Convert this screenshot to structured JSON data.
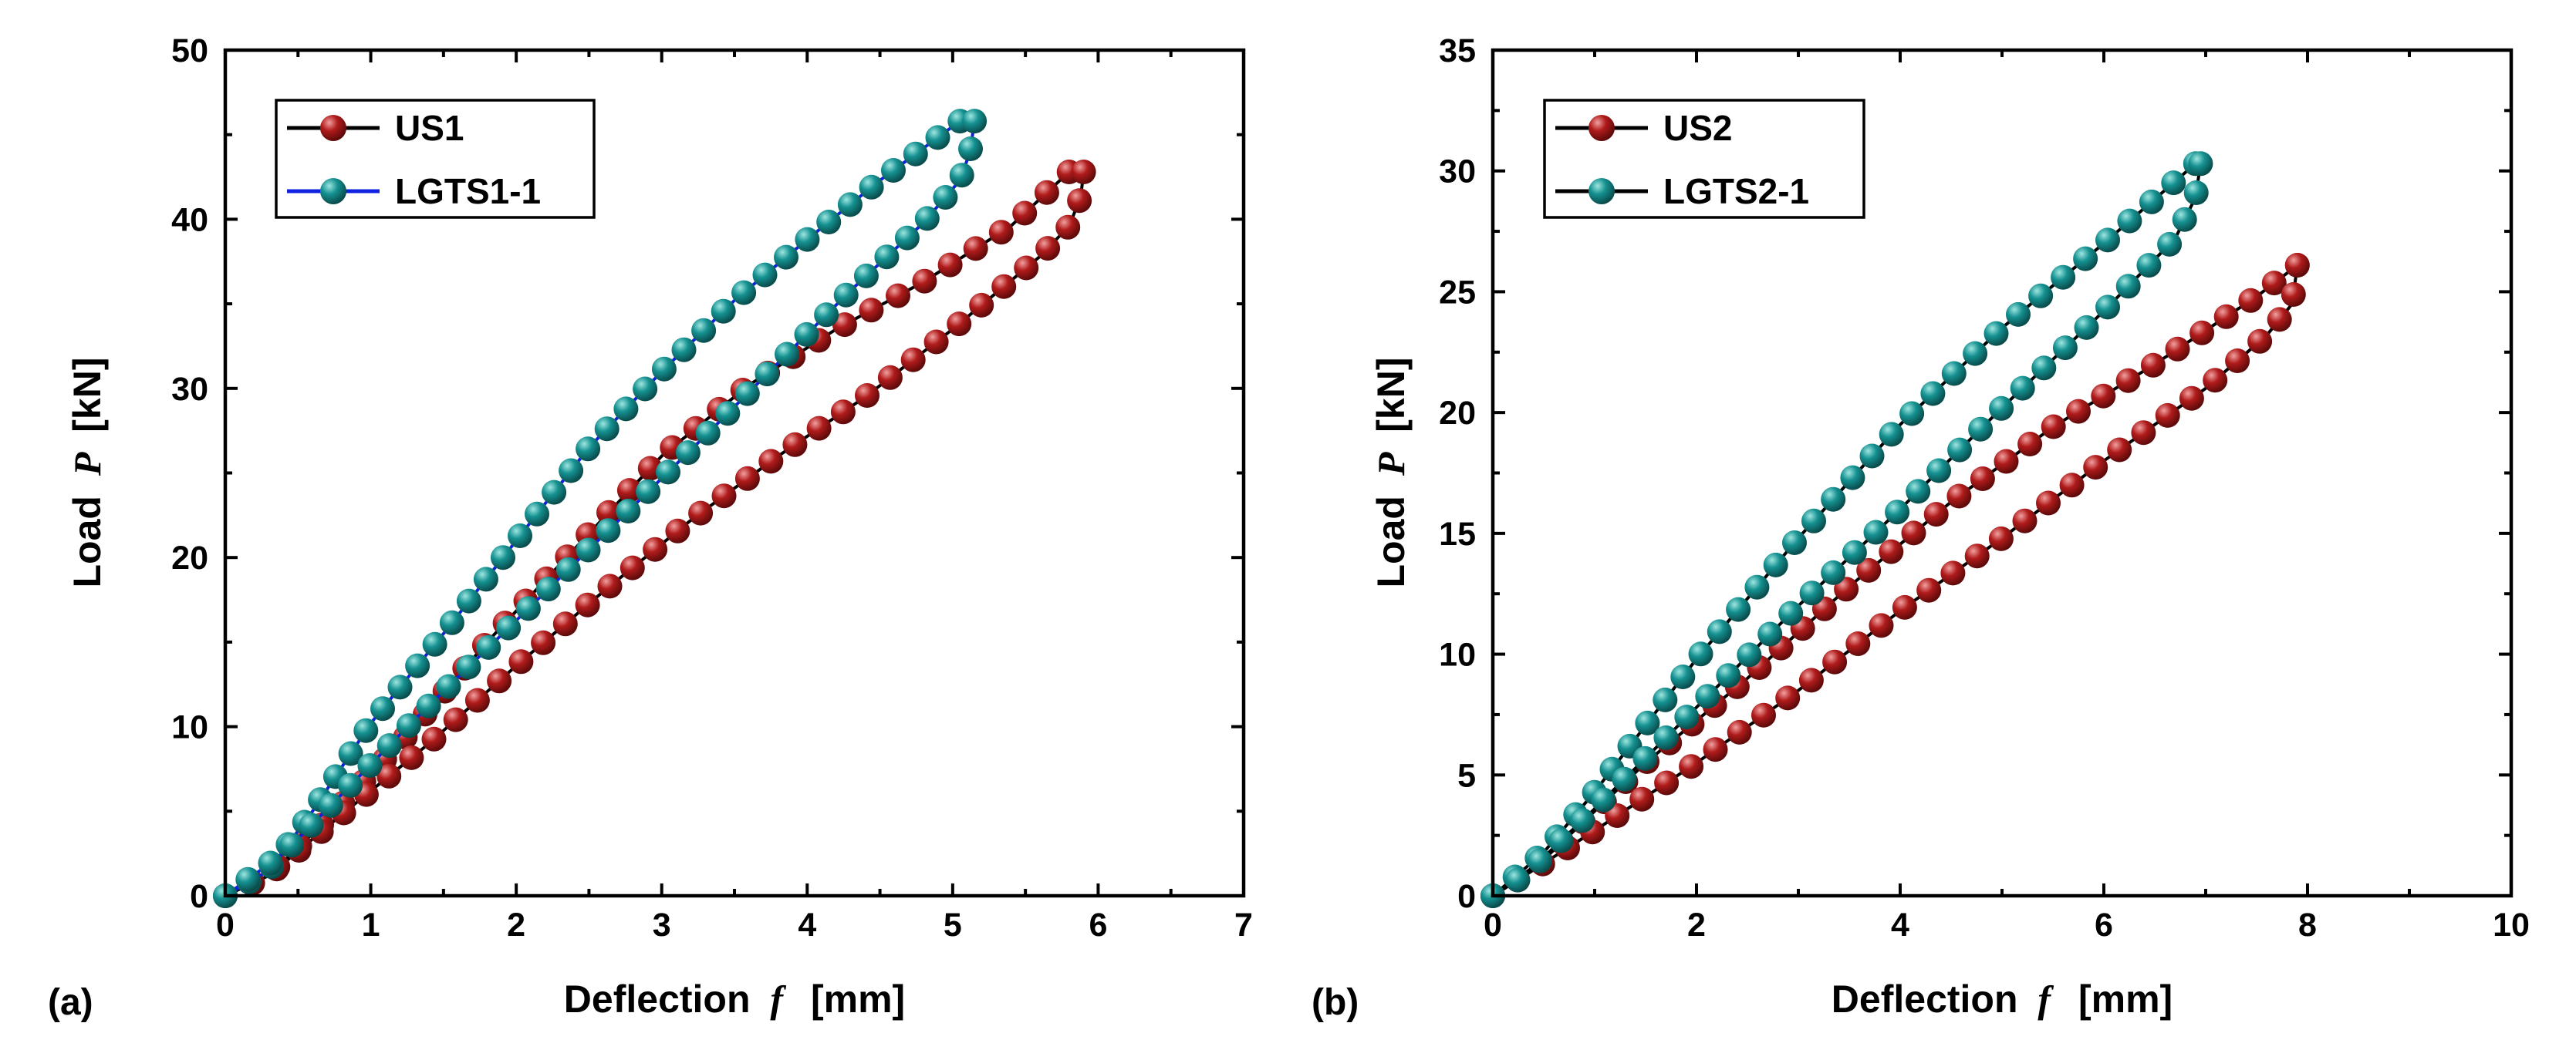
{
  "colors": {
    "us_marker": "#b01b1b",
    "us_marker_light": "#f2a0a0",
    "lgts_marker": "#159191",
    "lgts_marker_light": "#9ee6e0",
    "line_black": "#000000",
    "line_blue": "#1020e0"
  },
  "chart_data": [
    {
      "type": "line",
      "panel_label": "(a)",
      "xlabel_text": "Deflection",
      "xlabel_var": "f",
      "xlabel_unit": "[mm]",
      "ylabel_text": "Load",
      "ylabel_var": "P",
      "ylabel_unit": "[kN]",
      "xlim": [
        0,
        7
      ],
      "ylim": [
        0,
        50
      ],
      "xticks": [
        0,
        1,
        2,
        3,
        4,
        5,
        6,
        7
      ],
      "yticks": [
        0,
        10,
        20,
        30,
        40,
        50
      ],
      "legend_position": "top-left",
      "series": [
        {
          "name": "US1",
          "line_color": "#000000",
          "marker": "us",
          "loading": [
            [
              0,
              0
            ],
            [
              0.3,
              1.2
            ],
            [
              0.7,
              4.5
            ],
            [
              1.2,
              9
            ],
            [
              1.8,
              15
            ],
            [
              2.4,
              20.5
            ],
            [
              3,
              26
            ],
            [
              3.6,
              30.2
            ],
            [
              4.2,
              33.5
            ],
            [
              4.8,
              36.3
            ],
            [
              5.4,
              39.6
            ],
            [
              5.8,
              42.8
            ]
          ],
          "unloading": [
            [
              5.9,
              42.8
            ],
            [
              5.88,
              41.3
            ],
            [
              5.8,
              39.6
            ],
            [
              5.6,
              37.8
            ],
            [
              5,
              33.5
            ],
            [
              4.4,
              29.5
            ],
            [
              3.8,
              26
            ],
            [
              3.2,
              22.2
            ],
            [
              2.6,
              18
            ],
            [
              2,
              13.6
            ],
            [
              1.4,
              9
            ],
            [
              0.8,
              4.8
            ],
            [
              0.3,
              1.2
            ],
            [
              0,
              0
            ]
          ],
          "loading_points": 38,
          "unloading_points": 40
        },
        {
          "name": "LGTS1-1",
          "line_color": "#1020e0",
          "marker": "lgts",
          "loading": [
            [
              0,
              0
            ],
            [
              0.3,
              1.5
            ],
            [
              0.6,
              5
            ],
            [
              1,
              10.2
            ],
            [
              1.5,
              15.5
            ],
            [
              2,
              21
            ],
            [
              2.5,
              26.5
            ],
            [
              3,
              31
            ],
            [
              3.5,
              35.2
            ],
            [
              4,
              38.8
            ],
            [
              4.5,
              42.3
            ],
            [
              5.05,
              45.8
            ]
          ],
          "unloading": [
            [
              5.15,
              45.8
            ],
            [
              5.12,
              44
            ],
            [
              5.05,
              42.3
            ],
            [
              4.8,
              39.8
            ],
            [
              4.3,
              35.8
            ],
            [
              3.8,
              31.5
            ],
            [
              3.3,
              27.2
            ],
            [
              2.8,
              23
            ],
            [
              2.3,
              18.8
            ],
            [
              1.8,
              14.6
            ],
            [
              1.3,
              10.4
            ],
            [
              0.8,
              6
            ],
            [
              0.4,
              2.5
            ],
            [
              0,
              0
            ]
          ],
          "loading_points": 40,
          "unloading_points": 40
        }
      ]
    },
    {
      "type": "line",
      "panel_label": "(b)",
      "xlabel_text": "Deflection",
      "xlabel_var": "f",
      "xlabel_unit": "[mm]",
      "ylabel_text": "Load",
      "ylabel_var": "P",
      "ylabel_unit": "[kN]",
      "xlim": [
        0,
        10
      ],
      "ylim": [
        0,
        35
      ],
      "xticks": [
        0,
        2,
        4,
        6,
        8,
        10
      ],
      "yticks": [
        0,
        5,
        10,
        15,
        20,
        25,
        30,
        35
      ],
      "legend_position": "top-left",
      "series": [
        {
          "name": "US2",
          "line_color": "#000000",
          "marker": "us",
          "loading": [
            [
              0,
              0
            ],
            [
              0.5,
              1.5
            ],
            [
              1.5,
              5.5
            ],
            [
              2.5,
              9
            ],
            [
              3.5,
              12.8
            ],
            [
              4.5,
              16.3
            ],
            [
              5.5,
              19.4
            ],
            [
              6.5,
              22
            ],
            [
              7.5,
              24.8
            ],
            [
              7.9,
              26.1
            ]
          ],
          "unloading": [
            [
              7.9,
              26.1
            ],
            [
              7.85,
              24.5
            ],
            [
              7.6,
              23.2
            ],
            [
              7,
              21
            ],
            [
              6,
              18
            ],
            [
              5,
              14.8
            ],
            [
              4,
              11.8
            ],
            [
              3,
              8.5
            ],
            [
              2,
              5.5
            ],
            [
              1,
              2.7
            ],
            [
              0.3,
              0.8
            ],
            [
              0,
              0
            ]
          ],
          "loading_points": 36,
          "unloading_points": 36
        },
        {
          "name": "LGTS2-1",
          "line_color": "#000000",
          "marker": "lgts",
          "loading": [
            [
              0,
              0
            ],
            [
              0.5,
              1.8
            ],
            [
              1,
              4.3
            ],
            [
              2,
              9.8
            ],
            [
              3,
              14.8
            ],
            [
              4,
              19.5
            ],
            [
              5,
              23.5
            ],
            [
              6,
              27
            ],
            [
              6.9,
              30.3
            ]
          ],
          "unloading": [
            [
              6.95,
              30.3
            ],
            [
              6.9,
              28.9
            ],
            [
              6.7,
              27.2
            ],
            [
              6,
              24.2
            ],
            [
              5,
              20.2
            ],
            [
              4,
              16
            ],
            [
              3,
              12
            ],
            [
              2,
              7.8
            ],
            [
              1,
              3.6
            ],
            [
              0.3,
              0.8
            ],
            [
              0,
              0
            ]
          ],
          "loading_points": 36,
          "unloading_points": 36
        }
      ]
    }
  ]
}
